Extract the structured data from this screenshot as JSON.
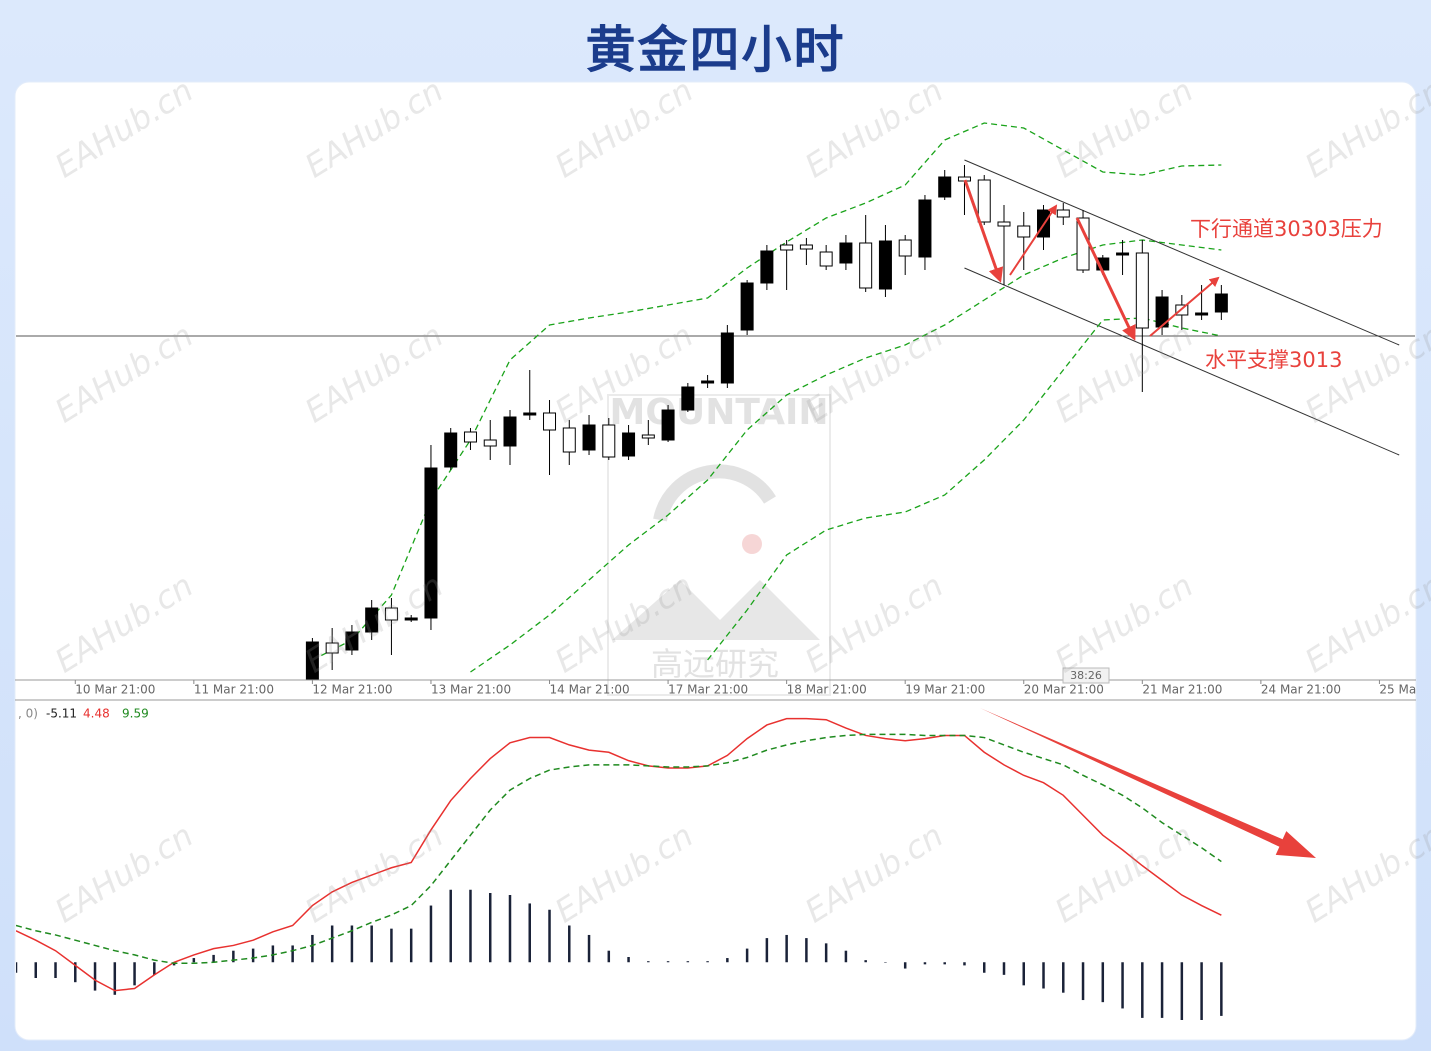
{
  "title": "黄金四小时",
  "watermark": "EAHub.cn",
  "logo": {
    "name": "MOUNTAIN",
    "subtitle": "高远研究"
  },
  "chart_data": [
    {
      "type": "candlestick",
      "x": [
        15,
        16,
        17,
        18,
        19,
        20,
        21,
        22,
        23,
        24,
        25,
        26,
        27,
        28,
        29,
        30,
        31,
        32,
        33,
        34,
        35,
        36,
        37,
        38,
        39,
        40,
        41,
        42,
        43,
        44,
        45,
        46,
        47,
        48,
        49,
        50,
        51,
        52,
        53,
        54,
        55,
        56,
        57,
        58,
        59,
        60,
        61
      ],
      "open": [
        2927,
        2936.25,
        2934.5,
        2939,
        2945,
        2942,
        2942.5,
        2980.25,
        2989,
        2987,
        2985.5,
        2993.25,
        2993.75,
        2990,
        2984.5,
        2990.75,
        2983,
        2988.25,
        2987,
        2994.5,
        3001.25,
        3001.25,
        3014.5,
        3026.25,
        3035.75,
        3035.75,
        3034,
        3031.25,
        3036.25,
        3024.75,
        3037,
        3032.75,
        3047.75,
        3052.75,
        3052,
        3041.5,
        3040.5,
        3037.75,
        3044.5,
        3042.5,
        3029.5,
        3033.25,
        3033.75,
        3015.25,
        3020.75,
        3018.25,
        3019
      ],
      "high": [
        2937.5,
        2940,
        2940.75,
        2947,
        2947.5,
        2943.25,
        2985.75,
        2990,
        2990,
        2992,
        2994.5,
        3004.5,
        2997,
        2992,
        2993.25,
        2992.5,
        2990.75,
        2992,
        2995.75,
        3001.25,
        3003.25,
        3015.75,
        3027,
        3035.75,
        3037,
        3037.5,
        3035.75,
        3038.25,
        3043.25,
        3040.75,
        3038.25,
        3048.25,
        3054.5,
        3055.75,
        3053.25,
        3045.75,
        3044,
        3045.75,
        3046.25,
        3044.5,
        3033.25,
        3037,
        3037,
        3024.5,
        3023.25,
        3025.75,
        3025.75
      ],
      "low": [
        2924.5,
        2929.5,
        2933.25,
        2937,
        2933.25,
        2941.5,
        2939.5,
        2979.5,
        2984.5,
        2982,
        2980.75,
        2992,
        2978.25,
        2980.75,
        2983.25,
        2982,
        2982,
        2985.75,
        2986.5,
        2994,
        3000,
        3000,
        3013.25,
        3024.5,
        3024.5,
        3030.75,
        3029.5,
        3029.5,
        3024,
        3022.75,
        3028.25,
        3029.5,
        3047,
        3043.25,
        3040.75,
        3025.75,
        3029.5,
        3034.5,
        3040.75,
        3028.75,
        3028.25,
        3028.25,
        2999,
        3013.25,
        3014.5,
        3017,
        3017
      ],
      "close": [
        2936.5,
        2933.75,
        2939,
        2945,
        2942,
        2942.5,
        2980,
        2988.75,
        2986.5,
        2985.5,
        2992.75,
        2993.75,
        2989.5,
        2984,
        2990.75,
        2982.75,
        2988.75,
        2987.5,
        2994.5,
        3000.25,
        3001.75,
        3013.75,
        3026.25,
        3034.25,
        3034.5,
        3034.75,
        3030.5,
        3036.25,
        3025,
        3036.75,
        3033,
        3047,
        3052.75,
        3051.75,
        3041.5,
        3040.5,
        3037.75,
        3044.5,
        3042.75,
        3029.5,
        3032.5,
        3033.75,
        3015,
        3022.75,
        3018.25,
        3018.75,
        3023.5
      ],
      "up_color": "#000000",
      "down_color": "#ffffff",
      "xlim": [
        0,
        70.8
      ],
      "ylim": [
        2927,
        3067
      ],
      "xticks": [
        {
          "value": 3,
          "label": "10 Mar 21:00"
        },
        {
          "value": 9,
          "label": "11 Mar 21:00"
        },
        {
          "value": 15,
          "label": "12 Mar 21:00"
        },
        {
          "value": 21,
          "label": "13 Mar 21:00"
        },
        {
          "value": 27,
          "label": "14 Mar 21:00"
        },
        {
          "value": 33,
          "label": "17 Mar 21:00"
        },
        {
          "value": 39,
          "label": "18 Mar 21:00"
        },
        {
          "value": 45,
          "label": "19 Mar 21:00"
        },
        {
          "value": 51,
          "label": "20 Mar 21:00"
        },
        {
          "value": 57,
          "label": "21 Mar 21:00"
        },
        {
          "value": 63,
          "label": "24 Mar 21:00"
        },
        {
          "value": 69,
          "label": "25 Ma"
        }
      ],
      "band_color": "#1aa31a",
      "bands": [
        {
          "x": [
            15,
            17,
            19,
            21,
            23,
            25,
            27,
            29,
            31,
            33,
            35,
            37,
            39,
            41,
            43,
            45,
            47,
            49,
            51,
            53,
            55,
            57,
            59,
            61
          ],
          "values": [
            2932,
            2937,
            2948.25,
            2972,
            2987,
            3007,
            3015.75,
            3017.5,
            3019,
            3020.75,
            3022.5,
            3030,
            3036.5,
            3042.5,
            3046.25,
            3050.75,
            3062,
            3066.25,
            3065,
            3059.5,
            3054,
            3053.25,
            3055.5,
            3055.75
          ]
        },
        {
          "x": [
            23,
            25,
            27,
            29,
            31,
            33,
            35,
            37,
            39,
            41,
            43,
            45,
            47,
            49,
            51,
            53,
            55,
            57,
            59,
            61
          ],
          "values": [
            2929,
            2935.75,
            2943.25,
            2952,
            2960.75,
            2968.25,
            2977,
            2989.5,
            2998.25,
            3003.25,
            3007.5,
            3010.75,
            3015.75,
            3022,
            3028.25,
            3032.5,
            3035.75,
            3037,
            3035.75,
            3034.5
          ]
        },
        {
          "x": [
            35,
            37,
            39,
            41,
            43,
            45,
            47,
            49,
            51,
            53,
            55,
            57,
            59,
            61
          ],
          "values": [
            2932,
            2944.5,
            2958.25,
            2964.5,
            2967.5,
            2969,
            2973.25,
            2982,
            2992,
            3004.5,
            3017,
            3017.5,
            3015,
            3013
          ]
        }
      ],
      "hline": 3013,
      "trendlines": [
        {
          "x": [
            48,
            70
          ],
          "values": [
            3057,
            3010.75
          ]
        },
        {
          "x": [
            48,
            70
          ],
          "values": [
            3030,
            2983.25
          ]
        }
      ],
      "annotations": [
        "下行通道30303压力",
        "水平支撑3013"
      ],
      "countdown": "38:26"
    },
    {
      "type": "macd",
      "label": ", 0)",
      "x": [
        0,
        1,
        2,
        3,
        4,
        5,
        6,
        7,
        8,
        9,
        10,
        11,
        12,
        13,
        14,
        15,
        16,
        17,
        18,
        19,
        20,
        21,
        22,
        23,
        24,
        25,
        26,
        27,
        28,
        29,
        30,
        31,
        32,
        33,
        34,
        35,
        36,
        37,
        38,
        39,
        40,
        41,
        42,
        43,
        44,
        45,
        46,
        47,
        48,
        49,
        50,
        51,
        52,
        53,
        54,
        55,
        56,
        57,
        58,
        59,
        60,
        61
      ],
      "xlim": [
        0,
        70.8
      ],
      "ylim": [
        -7.5,
        24.5
      ],
      "series": [
        {
          "style": "bar",
          "color": "#1a2238",
          "values": [
            -1.0,
            -1.5,
            -1.5,
            -1.9,
            -2.7,
            -3.1,
            -2.2,
            -1.2,
            -0.3,
            0.4,
            0.7,
            1.1,
            1.3,
            1.6,
            1.6,
            2.6,
            3.5,
            3.5,
            3.5,
            3.2,
            3.2,
            5.4,
            6.9,
            6.9,
            6.6,
            6.4,
            5.6,
            5.0,
            3.5,
            2.6,
            1.1,
            0.5,
            0.1,
            0.1,
            0.1,
            0.1,
            0.4,
            1.3,
            2.3,
            2.6,
            2.3,
            1.8,
            1.1,
            0.2,
            0,
            -0.6,
            -0.2,
            -0.2,
            -0.3,
            -1.0,
            -1.2,
            -2.2,
            -2.5,
            -2.9,
            -3.6,
            -3.8,
            -4.4,
            -5.3,
            -5.3,
            -5.5,
            -5.5,
            -5.11
          ]
        },
        {
          "style": "line",
          "color": "#e8312f",
          "values": [
            3.0,
            2.1,
            1.1,
            -0.3,
            -1.7,
            -2.7,
            -2.5,
            -1.2,
            0,
            0.7,
            1.3,
            1.6,
            2.1,
            2.9,
            3.5,
            5.4,
            6.7,
            7.6,
            8.3,
            9.0,
            9.5,
            12.6,
            15.4,
            17.5,
            19.4,
            20.9,
            21.4,
            21.4,
            20.7,
            20.2,
            20.0,
            19.2,
            18.7,
            18.5,
            18.5,
            18.7,
            19.7,
            21.3,
            22.6,
            23.2,
            23.2,
            23.1,
            22.3,
            21.6,
            21.3,
            21.1,
            21.3,
            21.6,
            21.6,
            20.0,
            18.8,
            17.8,
            17.1,
            15.9,
            14.0,
            12.1,
            10.7,
            9.2,
            7.8,
            6.4,
            5.4,
            4.48
          ]
        },
        {
          "style": "dashed",
          "color": "#1f8a1f",
          "values": [
            3.5,
            3.0,
            2.6,
            2.1,
            1.6,
            1.1,
            0.7,
            0.2,
            -0.1,
            -0.1,
            0,
            0.2,
            0.4,
            0.7,
            1.1,
            1.6,
            2.3,
            3.0,
            3.8,
            4.5,
            5.4,
            7.3,
            9.7,
            12.1,
            14.5,
            16.4,
            17.5,
            18.3,
            18.6,
            18.8,
            18.8,
            18.8,
            18.7,
            18.6,
            18.6,
            18.7,
            19.0,
            19.5,
            20.2,
            20.7,
            21.1,
            21.4,
            21.6,
            21.7,
            21.7,
            21.7,
            21.6,
            21.6,
            21.6,
            21.4,
            20.7,
            20.0,
            19.4,
            18.8,
            17.8,
            16.9,
            15.9,
            14.7,
            13.3,
            12.1,
            10.9,
            9.59
          ]
        }
      ]
    }
  ]
}
